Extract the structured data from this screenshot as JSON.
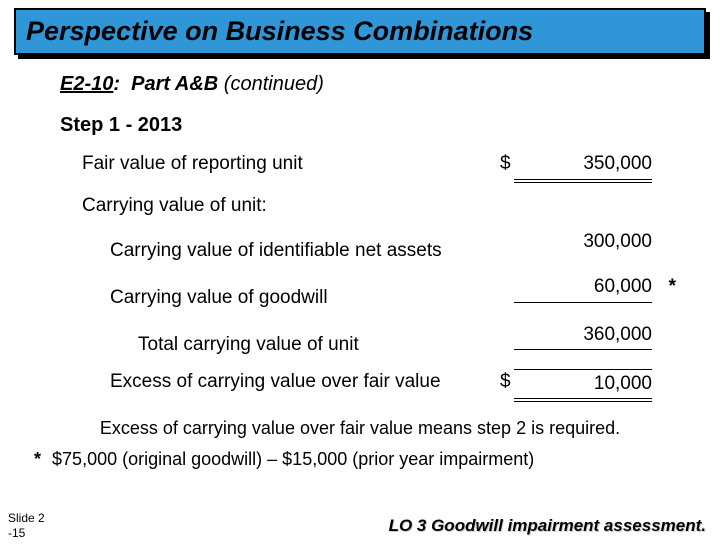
{
  "title": "Perspective on Business Combinations",
  "exercise": {
    "id": "E2-10",
    "colon": ":",
    "part": "Part A&B",
    "cont": "(continued)"
  },
  "step_heading": "Step 1 - 2013",
  "rows": {
    "fv": {
      "label": "Fair value of reporting unit",
      "cur": "$",
      "num": "350,000"
    },
    "cvh": {
      "label": "Carrying value of unit:"
    },
    "cvna": {
      "label": "Carrying value of identifiable net assets",
      "cur": "",
      "num": "300,000"
    },
    "cvg": {
      "label": "Carrying value of goodwill",
      "cur": "",
      "num": "60,000",
      "star": "*"
    },
    "tot": {
      "label": "Total carrying value of unit",
      "cur": "",
      "num": "360,000"
    },
    "exc": {
      "label": "Excess of carrying value over fair value",
      "cur": "$",
      "num": "10,000"
    }
  },
  "note": "Excess of carrying value over fair value means step 2 is required.",
  "footnote": {
    "star": "*",
    "text": "$75,000 (original goodwill) – $15,000 (prior year impairment)"
  },
  "slide_num": {
    "l1": "Slide 2",
    "l2": "-15"
  },
  "lo": "LO 3  Goodwill impairment assessment.",
  "colors": {
    "title_bg": "#2f97d8"
  }
}
